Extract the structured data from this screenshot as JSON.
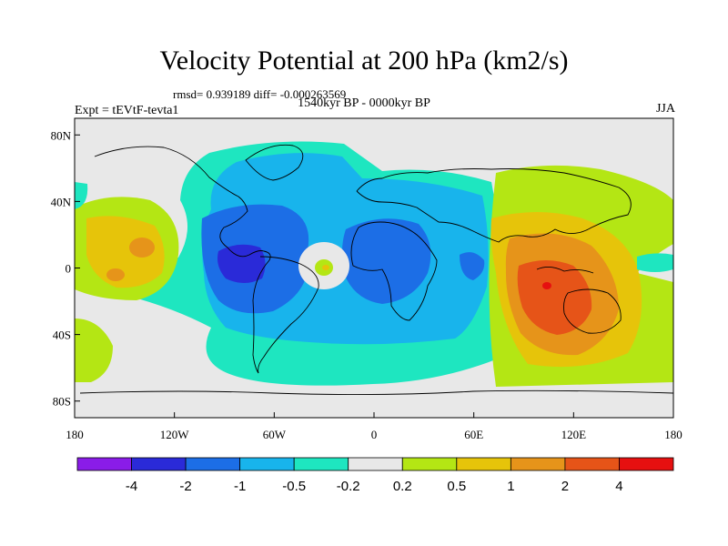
{
  "header": {
    "title": "Velocity Potential at 200 hPa (km2/s)",
    "stats": "rmsd= 0.939189  diff= -0.000263569",
    "period": "1540kyr BP - 0000kyr BP",
    "experiment": "Expt = tEVtF-tevta1",
    "season": "JJA"
  },
  "map": {
    "lat_ticks": [
      {
        "lat": 80,
        "label": "80N"
      },
      {
        "lat": 40,
        "label": "40N"
      },
      {
        "lat": 0,
        "label": "0"
      },
      {
        "lat": -40,
        "label": "40S"
      },
      {
        "lat": -80,
        "label": "80S"
      }
    ],
    "lon_ticks": [
      {
        "lon": -180,
        "label": "180"
      },
      {
        "lon": -120,
        "label": "120W"
      },
      {
        "lon": -60,
        "label": "60W"
      },
      {
        "lon": 0,
        "label": "0"
      },
      {
        "lon": 60,
        "label": "60E"
      },
      {
        "lon": 120,
        "label": "120E"
      },
      {
        "lon": 180,
        "label": "180"
      }
    ]
  },
  "colorbar": {
    "colors": [
      "#8a1ce8",
      "#2a2ad8",
      "#1c6ee6",
      "#18b4ec",
      "#1ee6c0",
      "#e8e8e8",
      "#b4e614",
      "#e6c40a",
      "#e6941a",
      "#e65418",
      "#e61010"
    ],
    "labels": [
      "-4",
      "-2",
      "-1",
      "-0.5",
      "-0.2",
      "0.2",
      "0.5",
      "1",
      "2",
      "4"
    ]
  }
}
